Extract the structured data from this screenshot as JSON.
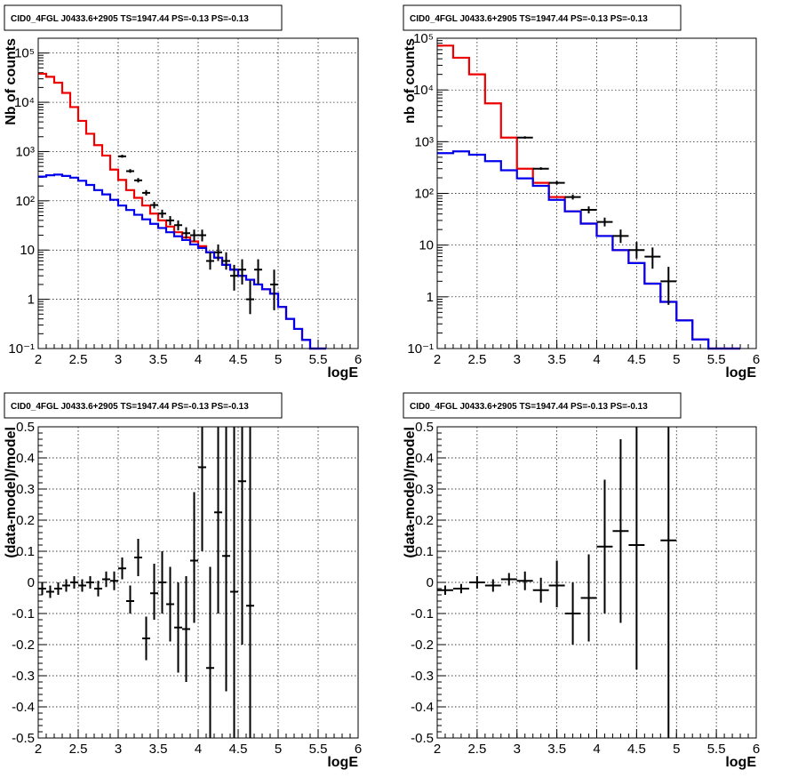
{
  "chart_data": [
    {
      "type": "line",
      "title": "CID0_4FGL J0433.6+2905 TS=1947.44 PS=-0.13 PS=-0.13",
      "xlabel": "logE",
      "ylabel": "Nb of counts",
      "xlim": [
        2,
        6
      ],
      "ylim": [
        0.1,
        200000
      ],
      "y_scale": "log",
      "grid": true,
      "x_ticks": [
        "2",
        "2.5",
        "3",
        "3.5",
        "4",
        "4.5",
        "5",
        "5.5",
        "6"
      ],
      "y_ticks": [
        "10⁻¹",
        "1",
        "10",
        "10²",
        "10³",
        "10⁴",
        "10⁵"
      ],
      "series": [
        {
          "color": "#ee0000",
          "style": "step",
          "edges": [
            2.0,
            2.1,
            2.2,
            2.3,
            2.4,
            2.5,
            2.6,
            2.7,
            2.8,
            2.9,
            3.0,
            3.1,
            3.2,
            3.3,
            3.4,
            3.5,
            3.6,
            3.7,
            3.8,
            3.9,
            4.0,
            4.1,
            4.2,
            4.3,
            4.4,
            4.5,
            4.6,
            4.7,
            4.8,
            4.9,
            5.0,
            5.1,
            5.2,
            5.3,
            5.4,
            5.5,
            5.6
          ],
          "values": [
            38000,
            33000,
            25000,
            15500,
            8000,
            4200,
            2300,
            1350,
            830,
            430,
            265,
            165,
            115,
            80,
            55,
            40,
            30,
            23,
            18,
            15,
            12,
            9,
            7,
            5,
            4,
            3,
            2.5,
            2,
            1.6,
            1.3,
            0.7,
            0.4,
            0.25,
            0.15,
            0.1,
            0.1
          ]
        },
        {
          "color": "#0000ee",
          "style": "step",
          "edges": [
            2.0,
            2.1,
            2.2,
            2.3,
            2.4,
            2.5,
            2.6,
            2.7,
            2.8,
            2.9,
            3.0,
            3.1,
            3.2,
            3.3,
            3.4,
            3.5,
            3.6,
            3.7,
            3.8,
            3.9,
            4.0,
            4.1,
            4.2,
            4.3,
            4.4,
            4.5,
            4.6,
            4.7,
            4.8,
            4.9,
            5.0,
            5.1,
            5.2,
            5.3,
            5.4,
            5.5,
            5.6
          ],
          "values": [
            310,
            330,
            340,
            320,
            295,
            255,
            210,
            165,
            135,
            105,
            80,
            65,
            52,
            42,
            34,
            28,
            23,
            19,
            16,
            13,
            11,
            9,
            7,
            5,
            4,
            3,
            2.5,
            2,
            1.6,
            1.3,
            0.7,
            0.4,
            0.25,
            0.15,
            0.1,
            0.1
          ]
        }
      ],
      "points": [
        {
          "x": 3.05,
          "y": 800,
          "ylo": 750,
          "yhi": 860,
          "xerr": 0.05
        },
        {
          "x": 3.15,
          "y": 400,
          "ylo": 370,
          "yhi": 440,
          "xerr": 0.05
        },
        {
          "x": 3.25,
          "y": 260,
          "ylo": 235,
          "yhi": 290,
          "xerr": 0.05
        },
        {
          "x": 3.35,
          "y": 145,
          "ylo": 128,
          "yhi": 165,
          "xerr": 0.05
        },
        {
          "x": 3.45,
          "y": 82,
          "ylo": 70,
          "yhi": 95,
          "xerr": 0.05
        },
        {
          "x": 3.55,
          "y": 55,
          "ylo": 45,
          "yhi": 66,
          "xerr": 0.05
        },
        {
          "x": 3.65,
          "y": 40,
          "ylo": 32,
          "yhi": 49,
          "xerr": 0.05
        },
        {
          "x": 3.75,
          "y": 32,
          "ylo": 25,
          "yhi": 40,
          "xerr": 0.05
        },
        {
          "x": 3.85,
          "y": 22,
          "ylo": 17,
          "yhi": 29,
          "xerr": 0.05
        },
        {
          "x": 3.95,
          "y": 20,
          "ylo": 15,
          "yhi": 26,
          "xerr": 0.05
        },
        {
          "x": 4.05,
          "y": 20,
          "ylo": 15,
          "yhi": 26,
          "xerr": 0.05
        },
        {
          "x": 4.15,
          "y": 6,
          "ylo": 4,
          "yhi": 9,
          "xerr": 0.05
        },
        {
          "x": 4.25,
          "y": 9,
          "ylo": 6,
          "yhi": 13,
          "xerr": 0.05
        },
        {
          "x": 4.35,
          "y": 6,
          "ylo": 4,
          "yhi": 9,
          "xerr": 0.05
        },
        {
          "x": 4.45,
          "y": 3,
          "ylo": 1.5,
          "yhi": 5,
          "xerr": 0.05
        },
        {
          "x": 4.55,
          "y": 4,
          "ylo": 2,
          "yhi": 6.5,
          "xerr": 0.05
        },
        {
          "x": 4.65,
          "y": 1,
          "ylo": 0.5,
          "yhi": 2.4,
          "xerr": 0.05
        },
        {
          "x": 4.75,
          "y": 4,
          "ylo": 2,
          "yhi": 6.5,
          "xerr": 0.05
        },
        {
          "x": 4.95,
          "y": 2,
          "ylo": 0.6,
          "yhi": 4,
          "xerr": 0.05
        }
      ]
    },
    {
      "type": "line",
      "title": "CID0_4FGL J0433.6+2905 TS=1947.44 PS=-0.13 PS=-0.13",
      "xlabel": "logE",
      "ylabel": "nb of counts",
      "xlim": [
        2,
        6
      ],
      "ylim": [
        0.1,
        100000
      ],
      "y_scale": "log",
      "grid": true,
      "x_ticks": [
        "2",
        "2.5",
        "3",
        "3.5",
        "4",
        "4.5",
        "5",
        "5.5",
        "6"
      ],
      "y_ticks": [
        "10⁻¹",
        "1",
        "10",
        "10²",
        "10³",
        "10⁴",
        "10⁵"
      ],
      "series": [
        {
          "color": "#ee0000",
          "style": "step",
          "edges": [
            2.0,
            2.2,
            2.4,
            2.6,
            2.8,
            3.0,
            3.2,
            3.4,
            3.6,
            3.8,
            4.0,
            4.2,
            4.4,
            4.6,
            4.8,
            5.0,
            5.2,
            5.4,
            5.6,
            5.8
          ],
          "values": [
            72000,
            42000,
            20000,
            5500,
            1200,
            300,
            160,
            85,
            45,
            26,
            15,
            8,
            4.5,
            1.8,
            0.8,
            0.35,
            0.15,
            0.1,
            0.1
          ]
        },
        {
          "color": "#0000ee",
          "style": "step",
          "edges": [
            2.0,
            2.2,
            2.4,
            2.6,
            2.8,
            3.0,
            3.2,
            3.4,
            3.6,
            3.8,
            4.0,
            4.2,
            4.4,
            4.6,
            4.8,
            5.0,
            5.2,
            5.4,
            5.6,
            5.8
          ],
          "values": [
            600,
            650,
            560,
            420,
            280,
            195,
            140,
            75,
            45,
            26,
            15,
            8,
            4.5,
            1.8,
            0.8,
            0.35,
            0.15,
            0.1,
            0.1
          ]
        }
      ],
      "points": [
        {
          "x": 3.1,
          "y": 1200,
          "ylo": 1140,
          "yhi": 1270,
          "xerr": 0.1
        },
        {
          "x": 3.3,
          "y": 300,
          "ylo": 285,
          "yhi": 320,
          "xerr": 0.1
        },
        {
          "x": 3.5,
          "y": 160,
          "ylo": 148,
          "yhi": 174,
          "xerr": 0.1
        },
        {
          "x": 3.7,
          "y": 85,
          "ylo": 76,
          "yhi": 95,
          "xerr": 0.1
        },
        {
          "x": 3.9,
          "y": 48,
          "ylo": 41,
          "yhi": 56,
          "xerr": 0.1
        },
        {
          "x": 4.1,
          "y": 28,
          "ylo": 23,
          "yhi": 34,
          "xerr": 0.1
        },
        {
          "x": 4.3,
          "y": 15,
          "ylo": 11,
          "yhi": 20,
          "xerr": 0.1
        },
        {
          "x": 4.5,
          "y": 8,
          "ylo": 5.5,
          "yhi": 11.5,
          "xerr": 0.1
        },
        {
          "x": 4.7,
          "y": 6,
          "ylo": 3.5,
          "yhi": 9,
          "xerr": 0.1
        },
        {
          "x": 4.9,
          "y": 2,
          "ylo": 0.7,
          "yhi": 3.8,
          "xerr": 0.1
        }
      ]
    },
    {
      "type": "scatter",
      "title": "CID0_4FGL J0433.6+2905 TS=1947.44 PS=-0.13 PS=-0.13",
      "xlabel": "logE",
      "ylabel": "(data-model)/model",
      "xlim": [
        2,
        6
      ],
      "ylim": [
        -0.5,
        0.5
      ],
      "grid": true,
      "x_ticks": [
        "2",
        "2.5",
        "3",
        "3.5",
        "4",
        "4.5",
        "5",
        "5.5",
        "6"
      ],
      "y_ticks": [
        "-0.5",
        "-0.4",
        "-0.3",
        "-0.2",
        "-0.1",
        "0",
        "0.1",
        "0.2",
        "0.3",
        "0.4",
        "0.5"
      ],
      "points": [
        {
          "x": 2.05,
          "y": -0.02,
          "ylo": -0.04,
          "yhi": 0.0,
          "xerr": 0.05
        },
        {
          "x": 2.15,
          "y": -0.03,
          "ylo": -0.05,
          "yhi": -0.01,
          "xerr": 0.05
        },
        {
          "x": 2.25,
          "y": -0.02,
          "ylo": -0.04,
          "yhi": 0.0,
          "xerr": 0.05
        },
        {
          "x": 2.35,
          "y": -0.01,
          "ylo": -0.03,
          "yhi": 0.01,
          "xerr": 0.05
        },
        {
          "x": 2.45,
          "y": 0.0,
          "ylo": -0.02,
          "yhi": 0.02,
          "xerr": 0.05
        },
        {
          "x": 2.55,
          "y": -0.01,
          "ylo": -0.03,
          "yhi": 0.01,
          "xerr": 0.05
        },
        {
          "x": 2.65,
          "y": 0.0,
          "ylo": -0.02,
          "yhi": 0.02,
          "xerr": 0.05
        },
        {
          "x": 2.75,
          "y": -0.02,
          "ylo": -0.045,
          "yhi": 0.005,
          "xerr": 0.05
        },
        {
          "x": 2.85,
          "y": 0.01,
          "ylo": -0.015,
          "yhi": 0.035,
          "xerr": 0.05
        },
        {
          "x": 2.95,
          "y": 0.005,
          "ylo": -0.025,
          "yhi": 0.035,
          "xerr": 0.05
        },
        {
          "x": 3.05,
          "y": 0.045,
          "ylo": 0.01,
          "yhi": 0.08,
          "xerr": 0.05
        },
        {
          "x": 3.15,
          "y": -0.06,
          "ylo": -0.1,
          "yhi": -0.01,
          "xerr": 0.05
        },
        {
          "x": 3.25,
          "y": 0.08,
          "ylo": 0.02,
          "yhi": 0.14,
          "xerr": 0.05
        },
        {
          "x": 3.35,
          "y": -0.18,
          "ylo": -0.25,
          "yhi": -0.11,
          "xerr": 0.05
        },
        {
          "x": 3.45,
          "y": -0.035,
          "ylo": -0.12,
          "yhi": 0.06,
          "xerr": 0.05
        },
        {
          "x": 3.55,
          "y": 0.0,
          "ylo": -0.1,
          "yhi": 0.1,
          "xerr": 0.05
        },
        {
          "x": 3.65,
          "y": -0.07,
          "ylo": -0.19,
          "yhi": 0.05,
          "xerr": 0.05
        },
        {
          "x": 3.75,
          "y": -0.145,
          "ylo": -0.29,
          "yhi": 0.0,
          "xerr": 0.05
        },
        {
          "x": 3.85,
          "y": -0.15,
          "ylo": -0.32,
          "yhi": 0.02,
          "xerr": 0.05
        },
        {
          "x": 3.95,
          "y": 0.07,
          "ylo": -0.13,
          "yhi": 0.29,
          "xerr": 0.05
        },
        {
          "x": 4.05,
          "y": 0.37,
          "ylo": 0.1,
          "yhi": 0.5,
          "xerr": 0.05
        },
        {
          "x": 4.15,
          "y": -0.275,
          "ylo": -0.5,
          "yhi": 0.05,
          "xerr": 0.05
        },
        {
          "x": 4.25,
          "y": 0.225,
          "ylo": -0.1,
          "yhi": 0.5,
          "xerr": 0.05
        },
        {
          "x": 4.35,
          "y": 0.085,
          "ylo": -0.35,
          "yhi": 0.5,
          "xerr": 0.05
        },
        {
          "x": 4.45,
          "y": -0.03,
          "ylo": -0.5,
          "yhi": 0.5,
          "xerr": 0.05
        },
        {
          "x": 4.55,
          "y": 0.325,
          "ylo": -0.2,
          "yhi": 0.5,
          "xerr": 0.05
        },
        {
          "x": 4.65,
          "y": -0.075,
          "ylo": -0.5,
          "yhi": 0.5,
          "xerr": 0.05
        }
      ]
    },
    {
      "type": "scatter",
      "title": "CID0_4FGL J0433.6+2905 TS=1947.44 PS=-0.13 PS=-0.13",
      "xlabel": "logE",
      "ylabel": "(data-model)/model",
      "xlim": [
        2,
        6
      ],
      "ylim": [
        -0.5,
        0.5
      ],
      "grid": true,
      "x_ticks": [
        "2",
        "2.5",
        "3",
        "3.5",
        "4",
        "4.5",
        "5",
        "5.5",
        "6"
      ],
      "y_ticks": [
        "-0.5",
        "-0.4",
        "-0.3",
        "-0.2",
        "-0.1",
        "0",
        "0.1",
        "0.2",
        "0.3",
        "0.4",
        "0.5"
      ],
      "points": [
        {
          "x": 2.1,
          "y": -0.025,
          "ylo": -0.04,
          "yhi": -0.01,
          "xerr": 0.1
        },
        {
          "x": 2.3,
          "y": -0.02,
          "ylo": -0.035,
          "yhi": -0.005,
          "xerr": 0.1
        },
        {
          "x": 2.5,
          "y": 0.0,
          "ylo": -0.02,
          "yhi": 0.02,
          "xerr": 0.1
        },
        {
          "x": 2.7,
          "y": -0.01,
          "ylo": -0.03,
          "yhi": 0.01,
          "xerr": 0.1
        },
        {
          "x": 2.9,
          "y": 0.01,
          "ylo": -0.01,
          "yhi": 0.03,
          "xerr": 0.1
        },
        {
          "x": 3.1,
          "y": 0.005,
          "ylo": -0.025,
          "yhi": 0.035,
          "xerr": 0.1
        },
        {
          "x": 3.3,
          "y": -0.025,
          "ylo": -0.065,
          "yhi": 0.015,
          "xerr": 0.1
        },
        {
          "x": 3.5,
          "y": -0.01,
          "ylo": -0.08,
          "yhi": 0.07,
          "xerr": 0.1
        },
        {
          "x": 3.7,
          "y": -0.1,
          "ylo": -0.2,
          "yhi": 0.0,
          "xerr": 0.1
        },
        {
          "x": 3.9,
          "y": -0.05,
          "ylo": -0.19,
          "yhi": 0.09,
          "xerr": 0.1
        },
        {
          "x": 4.1,
          "y": 0.115,
          "ylo": -0.1,
          "yhi": 0.33,
          "xerr": 0.1
        },
        {
          "x": 4.3,
          "y": 0.165,
          "ylo": -0.13,
          "yhi": 0.46,
          "xerr": 0.1
        },
        {
          "x": 4.5,
          "y": 0.12,
          "ylo": -0.28,
          "yhi": 0.5,
          "xerr": 0.1
        },
        {
          "x": 4.9,
          "y": 0.135,
          "ylo": -0.5,
          "yhi": 0.5,
          "xerr": 0.1
        }
      ]
    }
  ]
}
